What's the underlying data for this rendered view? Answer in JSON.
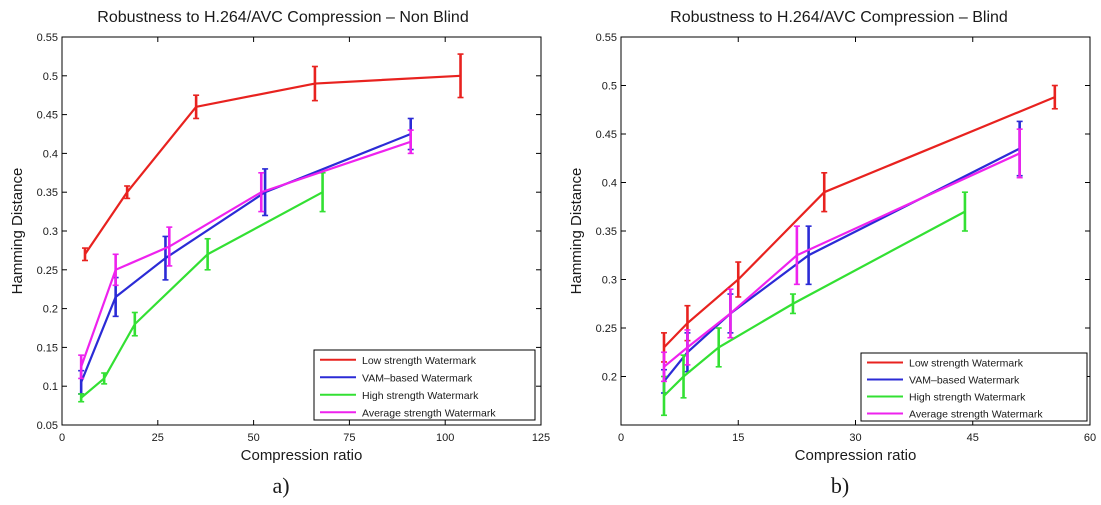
{
  "chart_data": [
    {
      "type": "line",
      "title": "Robustness to H.264/AVC Compression – Non Blind",
      "xlabel": "Compression ratio",
      "ylabel": "Hamming Distance",
      "caption": "a)",
      "xlim": [
        0,
        125
      ],
      "ylim": [
        0.05,
        0.55
      ],
      "xticks": [
        0,
        25,
        50,
        75,
        100,
        125
      ],
      "yticks": [
        0.05,
        0.1,
        0.15,
        0.2,
        0.25,
        0.3,
        0.35,
        0.4,
        0.45,
        0.5,
        0.55
      ],
      "xtick_labels": [
        "0",
        "25",
        "50",
        "75",
        "100",
        "125"
      ],
      "ytick_labels": [
        "0.05",
        "0.1",
        "0.15",
        "0.2",
        "0.25",
        "0.3",
        "0.35",
        "0.4",
        "0.45",
        "0.5",
        "0.55"
      ],
      "grid": false,
      "legend_position": "bottom-right",
      "series": [
        {
          "name": "Low strength Watermark",
          "color": "#e8221f",
          "x": [
            6,
            17,
            35,
            66,
            104
          ],
          "y": [
            0.27,
            0.35,
            0.46,
            0.49,
            0.5
          ],
          "err": [
            0.008,
            0.008,
            0.015,
            0.022,
            0.028
          ]
        },
        {
          "name": "VAM–based Watermark",
          "color": "#2b2bd6",
          "x": [
            5,
            14,
            27,
            53,
            91
          ],
          "y": [
            0.105,
            0.215,
            0.265,
            0.35,
            0.425
          ],
          "err": [
            0.015,
            0.025,
            0.028,
            0.03,
            0.02
          ]
        },
        {
          "name": "High strength Watermark",
          "color": "#33e033",
          "x": [
            5,
            11,
            19,
            38,
            68
          ],
          "y": [
            0.085,
            0.11,
            0.18,
            0.27,
            0.35
          ],
          "err": [
            0.005,
            0.007,
            0.015,
            0.02,
            0.025
          ]
        },
        {
          "name": "Average strength Watermark",
          "color": "#ee22ee",
          "x": [
            5,
            14,
            28,
            52,
            91
          ],
          "y": [
            0.125,
            0.25,
            0.28,
            0.35,
            0.415
          ],
          "err": [
            0.015,
            0.02,
            0.025,
            0.025,
            0.015
          ]
        }
      ]
    },
    {
      "type": "line",
      "title": "Robustness to H.264/AVC Compression – Blind",
      "xlabel": "Compression ratio",
      "ylabel": "Hamming Distance",
      "caption": "b)",
      "xlim": [
        0,
        60
      ],
      "ylim": [
        0.15,
        0.55
      ],
      "xticks": [
        0,
        15,
        30,
        45,
        60
      ],
      "yticks": [
        0.2,
        0.25,
        0.3,
        0.35,
        0.4,
        0.45,
        0.5,
        0.55
      ],
      "xtick_labels": [
        "0",
        "15",
        "30",
        "45",
        "60"
      ],
      "ytick_labels": [
        "0.2",
        "0.25",
        "0.3",
        "0.35",
        "0.4",
        "0.45",
        "0.5",
        "0.55"
      ],
      "grid": false,
      "legend_position": "bottom-right",
      "series": [
        {
          "name": "Low strength Watermark",
          "color": "#e8221f",
          "x": [
            5.5,
            8.5,
            15,
            26,
            55.5
          ],
          "y": [
            0.23,
            0.255,
            0.3,
            0.39,
            0.488
          ],
          "err": [
            0.015,
            0.018,
            0.018,
            0.02,
            0.012
          ]
        },
        {
          "name": "VAM–based Watermark",
          "color": "#2b2bd6",
          "x": [
            5.5,
            8.5,
            14,
            24,
            51
          ],
          "y": [
            0.195,
            0.225,
            0.265,
            0.325,
            0.435
          ],
          "err": [
            0.012,
            0.02,
            0.02,
            0.03,
            0.028
          ]
        },
        {
          "name": "High strength Watermark",
          "color": "#33e033",
          "x": [
            5.5,
            8,
            12.5,
            22,
            44
          ],
          "y": [
            0.18,
            0.2,
            0.23,
            0.275,
            0.37
          ],
          "err": [
            0.02,
            0.022,
            0.02,
            0.01,
            0.02
          ]
        },
        {
          "name": "Average strength Watermark",
          "color": "#ee22ee",
          "x": [
            5.5,
            8.5,
            14,
            22.5,
            51
          ],
          "y": [
            0.21,
            0.23,
            0.265,
            0.325,
            0.43
          ],
          "err": [
            0.015,
            0.018,
            0.025,
            0.03,
            0.025
          ]
        }
      ]
    }
  ]
}
